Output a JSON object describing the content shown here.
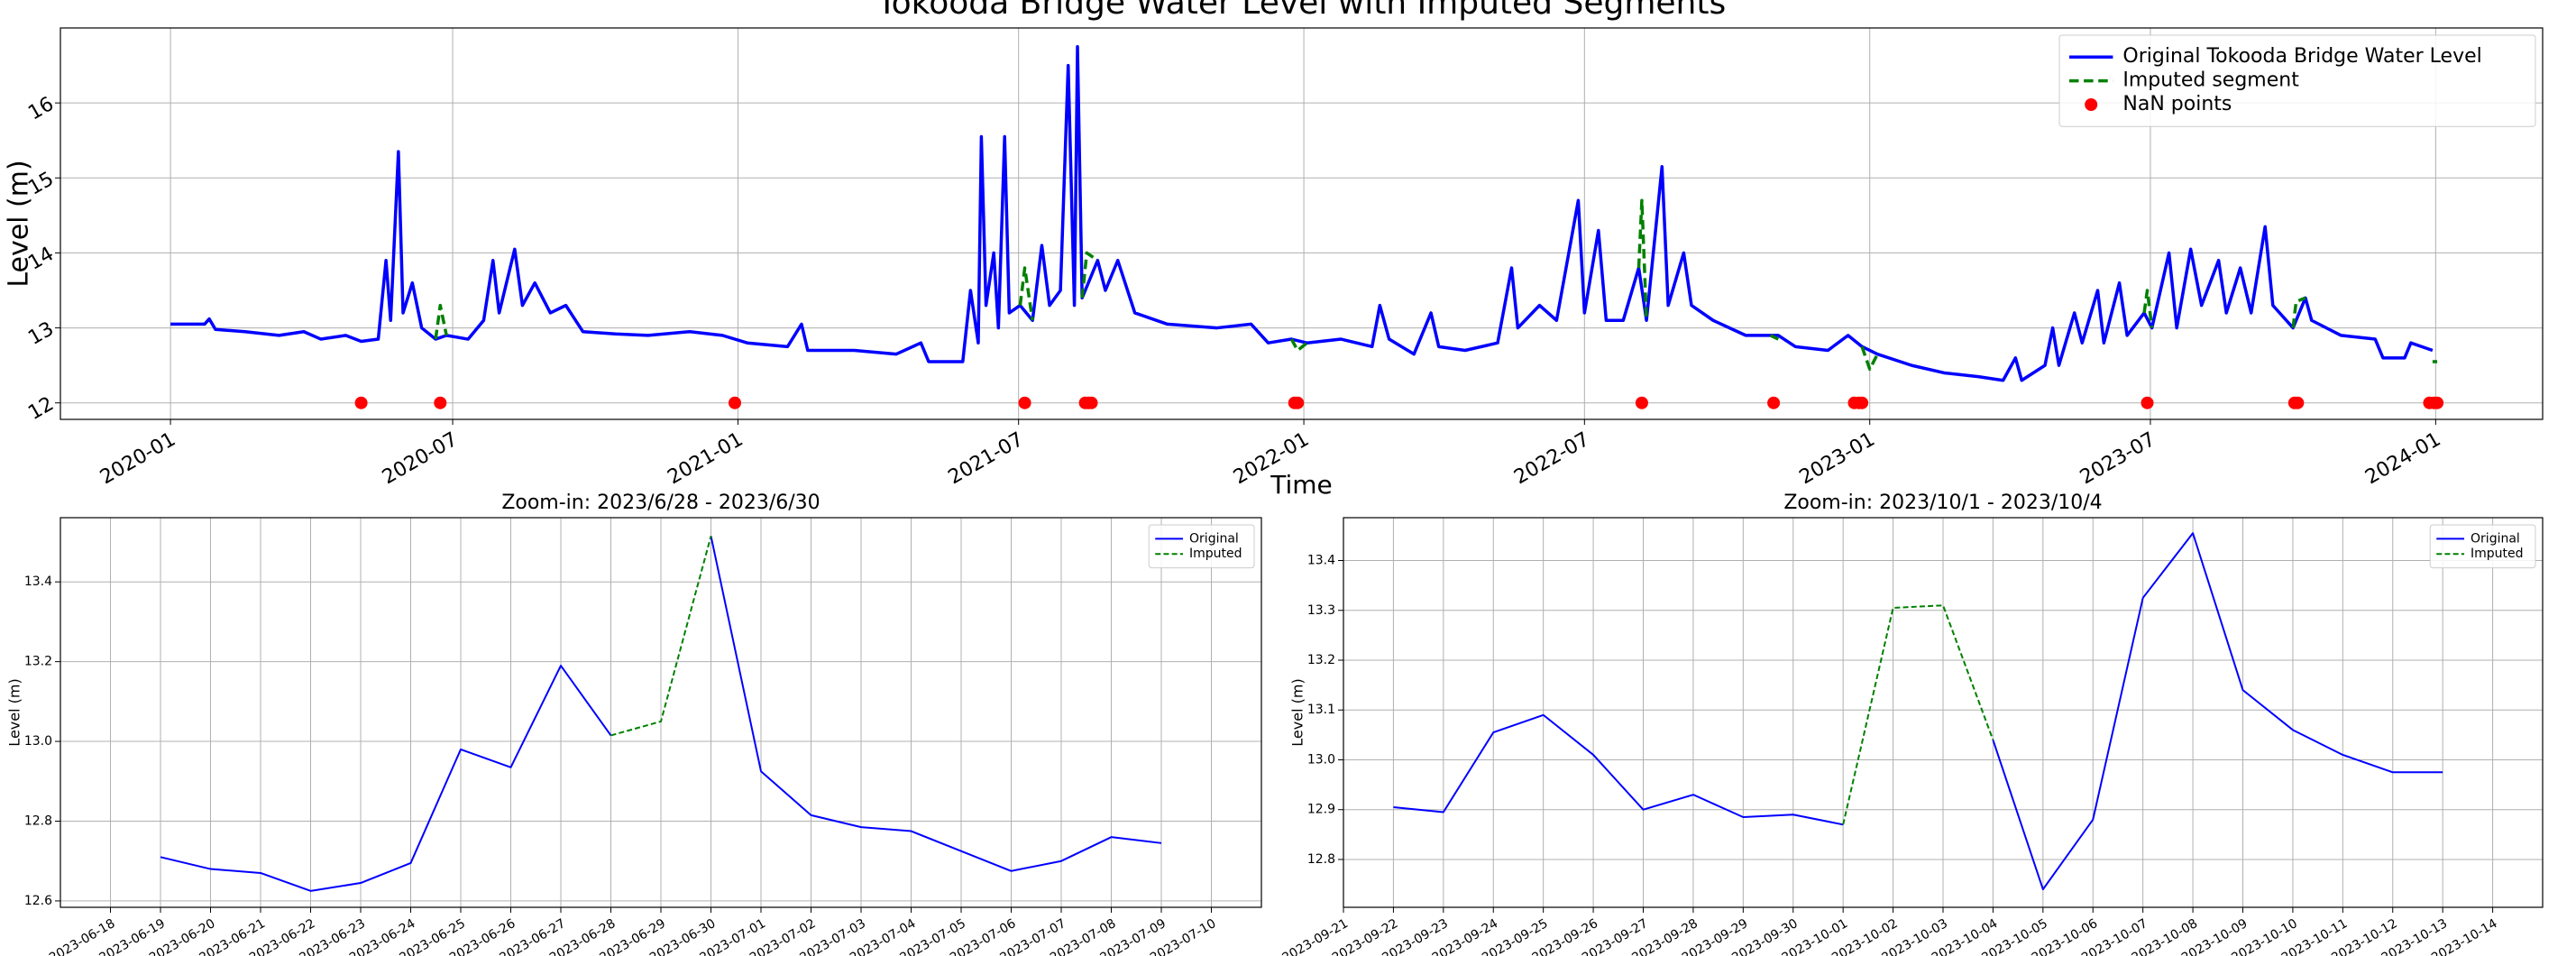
{
  "chart_data": [
    {
      "type": "line",
      "title": "Tokooda Bridge Water Level with Imputed Segments",
      "xlabel": "Time",
      "ylabel": "Level (m)",
      "xlim": [
        "2019-10-22",
        "2024-03-10"
      ],
      "ylim": [
        11.78,
        17.0
      ],
      "xticks": [
        {
          "value": "2020-01-01",
          "label": "2020-01"
        },
        {
          "value": "2020-07-01",
          "label": "2020-07"
        },
        {
          "value": "2021-01-01",
          "label": "2021-01"
        },
        {
          "value": "2021-07-01",
          "label": "2021-07"
        },
        {
          "value": "2022-01-01",
          "label": "2022-01"
        },
        {
          "value": "2022-07-01",
          "label": "2022-07"
        },
        {
          "value": "2023-01-01",
          "label": "2023-01"
        },
        {
          "value": "2023-07-01",
          "label": "2023-07"
        },
        {
          "value": "2024-01-01",
          "label": "2024-01"
        }
      ],
      "yticks": [
        12,
        13,
        14,
        15,
        16
      ],
      "grid": true,
      "legend": "upper right",
      "series": [
        {
          "name": "Original Tokooda Bridge Water Level",
          "color": "#0000ff",
          "style": "solid",
          "x": [
            "2020-01-01",
            "2020-01-23",
            "2020-01-26",
            "2020-01-30",
            "2020-02-18",
            "2020-03-11",
            "2020-03-27",
            "2020-04-07",
            "2020-04-23",
            "2020-05-03",
            "2020-05-14",
            "2020-05-19",
            "2020-05-22",
            "2020-05-27",
            "2020-05-30",
            "2020-06-05",
            "2020-06-11",
            "2020-06-20",
            "2020-06-27",
            "2020-07-11",
            "2020-07-21",
            "2020-07-27",
            "2020-07-31",
            "2020-08-10",
            "2020-08-15",
            "2020-08-23",
            "2020-09-02",
            "2020-09-12",
            "2020-09-23",
            "2020-10-14",
            "2020-11-04",
            "2020-12-01",
            "2020-12-22",
            "2021-01-07",
            "2021-02-02",
            "2021-02-11",
            "2021-02-15",
            "2021-03-17",
            "2021-04-13",
            "2021-04-29",
            "2021-05-04",
            "2021-05-26",
            "2021-05-31",
            "2021-06-05",
            "2021-06-07",
            "2021-06-10",
            "2021-06-15",
            "2021-06-18",
            "2021-06-22",
            "2021-06-25",
            "2021-07-02",
            "2021-07-10",
            "2021-07-16",
            "2021-07-21",
            "2021-07-28",
            "2021-08-02",
            "2021-08-06",
            "2021-08-08",
            "2021-08-11",
            "2021-08-21",
            "2021-08-26",
            "2021-09-03",
            "2021-09-14",
            "2021-10-05",
            "2021-11-06",
            "2021-11-28",
            "2021-12-09",
            "2021-12-24",
            "2022-01-03",
            "2022-01-25",
            "2022-02-14",
            "2022-02-19",
            "2022-02-25",
            "2022-03-13",
            "2022-03-24",
            "2022-03-29",
            "2022-04-15",
            "2022-05-06",
            "2022-05-15",
            "2022-05-19",
            "2022-06-02",
            "2022-06-13",
            "2022-06-27",
            "2022-07-01",
            "2022-07-10",
            "2022-07-15",
            "2022-07-26",
            "2022-08-05",
            "2022-08-10",
            "2022-08-20",
            "2022-08-24",
            "2022-09-03",
            "2022-09-08",
            "2022-09-22",
            "2022-10-13",
            "2022-11-03",
            "2022-11-14",
            "2022-12-05",
            "2022-12-18",
            "2022-12-27",
            "2023-01-06",
            "2023-01-28",
            "2023-02-18",
            "2023-03-12",
            "2023-03-28",
            "2023-04-05",
            "2023-04-09",
            "2023-04-24",
            "2023-04-29",
            "2023-05-03",
            "2023-05-13",
            "2023-05-18",
            "2023-05-28",
            "2023-06-01",
            "2023-06-11",
            "2023-06-16",
            "2023-06-27",
            "2023-07-02",
            "2023-07-13",
            "2023-07-18",
            "2023-07-27",
            "2023-08-03",
            "2023-08-14",
            "2023-08-19",
            "2023-08-28",
            "2023-09-04",
            "2023-09-13",
            "2023-09-18",
            "2023-10-01",
            "2023-10-09",
            "2023-10-13",
            "2023-11-01",
            "2023-11-23",
            "2023-11-28",
            "2023-12-12",
            "2023-12-16",
            "2023-12-30"
          ],
          "values": [
            13.05,
            13.05,
            13.12,
            12.98,
            12.95,
            12.9,
            12.95,
            12.85,
            12.9,
            12.82,
            12.85,
            13.9,
            13.1,
            15.35,
            13.2,
            13.6,
            13.0,
            12.85,
            12.9,
            12.85,
            13.1,
            13.9,
            13.2,
            14.05,
            13.3,
            13.6,
            13.2,
            13.3,
            12.95,
            12.92,
            12.9,
            12.95,
            12.9,
            12.8,
            12.75,
            13.05,
            12.7,
            12.7,
            12.65,
            12.8,
            12.55,
            12.55,
            13.5,
            12.8,
            15.55,
            13.3,
            14.0,
            13.0,
            15.55,
            13.2,
            13.3,
            13.1,
            14.1,
            13.3,
            13.5,
            16.5,
            13.3,
            16.75,
            13.4,
            13.9,
            13.5,
            13.9,
            13.2,
            13.05,
            13.0,
            13.05,
            12.8,
            12.85,
            12.8,
            12.85,
            12.75,
            13.3,
            12.85,
            12.65,
            13.2,
            12.75,
            12.7,
            12.8,
            13.8,
            13.0,
            13.3,
            13.1,
            14.7,
            13.2,
            14.3,
            13.1,
            13.1,
            13.8,
            13.1,
            15.15,
            13.3,
            14.0,
            13.3,
            13.1,
            12.9,
            12.9,
            12.75,
            12.7,
            12.9,
            12.75,
            12.65,
            12.5,
            12.4,
            12.35,
            12.3,
            12.6,
            12.3,
            12.5,
            13.0,
            12.5,
            13.2,
            12.8,
            13.5,
            12.8,
            13.6,
            12.9,
            13.2,
            13.0,
            14.0,
            13.0,
            14.05,
            13.3,
            13.9,
            13.2,
            13.8,
            13.2,
            14.35,
            13.3,
            13.0,
            13.4,
            13.1,
            12.9,
            12.85,
            12.6,
            12.6,
            12.8,
            12.7
          ]
        },
        {
          "name": "Imputed segment",
          "color": "#008000",
          "style": "dashed",
          "segments": [
            {
              "x": [
                "2020-06-20",
                "2020-06-23",
                "2020-06-27"
              ],
              "values": [
                12.85,
                13.3,
                12.9
              ]
            },
            {
              "x": [
                "2021-07-02",
                "2021-07-05",
                "2021-07-10"
              ],
              "values": [
                13.3,
                13.8,
                13.1
              ]
            },
            {
              "x": [
                "2021-08-11",
                "2021-08-14",
                "2021-08-21"
              ],
              "values": [
                13.4,
                14.0,
                13.9
              ]
            },
            {
              "x": [
                "2021-12-24",
                "2021-12-28",
                "2022-01-03"
              ],
              "values": [
                12.85,
                12.7,
                12.8
              ]
            },
            {
              "x": [
                "2022-08-05",
                "2022-08-07",
                "2022-08-10"
              ],
              "values": [
                13.8,
                14.7,
                13.1
              ]
            },
            {
              "x": [
                "2022-10-29",
                "2022-11-03"
              ],
              "values": [
                12.9,
                12.85
              ]
            },
            {
              "x": [
                "2022-12-27",
                "2023-01-01",
                "2023-01-06"
              ],
              "values": [
                12.75,
                12.45,
                12.65
              ]
            },
            {
              "x": [
                "2023-06-27",
                "2023-06-29",
                "2023-07-02"
              ],
              "values": [
                13.2,
                13.5,
                13.0
              ]
            },
            {
              "x": [
                "2023-10-01",
                "2023-10-03",
                "2023-10-09"
              ],
              "values": [
                13.0,
                13.35,
                13.4
              ]
            },
            {
              "x": [
                "2023-12-30",
                "2024-01-02"
              ],
              "values": [
                12.55,
                12.55
              ]
            }
          ]
        },
        {
          "name": "NaN points",
          "color": "#ff0000",
          "type": "scatter",
          "x": [
            "2020-05-03",
            "2020-06-23",
            "2020-12-30",
            "2021-07-05",
            "2021-08-13",
            "2021-08-15",
            "2021-08-17",
            "2021-12-26",
            "2021-12-28",
            "2022-08-07",
            "2022-10-31",
            "2022-12-22",
            "2022-12-25",
            "2022-12-27",
            "2023-06-29",
            "2023-10-02",
            "2023-10-04",
            "2023-12-28",
            "2023-12-31",
            "2024-01-02"
          ],
          "values": [
            12,
            12,
            12,
            12,
            12,
            12,
            12,
            12,
            12,
            12,
            12,
            12,
            12,
            12,
            12,
            12,
            12,
            12,
            12,
            12
          ]
        }
      ]
    },
    {
      "type": "line",
      "title": "Zoom-in: 2023/6/28 - 2023/6/30",
      "ylabel": "Level (m)",
      "xlim": [
        "2023-06-17",
        "2023-07-11"
      ],
      "ylim": [
        12.584,
        13.561
      ],
      "xticks": [
        "2023-06-18",
        "2023-06-19",
        "2023-06-20",
        "2023-06-21",
        "2023-06-22",
        "2023-06-23",
        "2023-06-24",
        "2023-06-25",
        "2023-06-26",
        "2023-06-27",
        "2023-06-28",
        "2023-06-29",
        "2023-06-30",
        "2023-07-01",
        "2023-07-02",
        "2023-07-03",
        "2023-07-04",
        "2023-07-05",
        "2023-07-06",
        "2023-07-07",
        "2023-07-08",
        "2023-07-09",
        "2023-07-10"
      ],
      "yticks": [
        12.6,
        12.8,
        {
          "value": 13,
          "label": "13.0"
        },
        13.2,
        13.4
      ],
      "grid": true,
      "legend": "upper right",
      "x": [
        "2023-06-19",
        "2023-06-20",
        "2023-06-21",
        "2023-06-22",
        "2023-06-23",
        "2023-06-24",
        "2023-06-25",
        "2023-06-26",
        "2023-06-27",
        "2023-06-28",
        "2023-06-29",
        "2023-06-30",
        "2023-07-01",
        "2023-07-02",
        "2023-07-03",
        "2023-07-04",
        "2023-07-05",
        "2023-07-06",
        "2023-07-07",
        "2023-07-08",
        "2023-07-09"
      ],
      "series": [
        {
          "name": "Original",
          "color": "#0000ff",
          "style": "solid",
          "values": [
            12.71,
            12.68,
            12.67,
            12.625,
            12.645,
            12.695,
            12.98,
            12.935,
            13.19,
            13.015,
            null,
            13.515,
            12.925,
            12.815,
            12.785,
            12.775,
            12.725,
            12.675,
            12.7,
            12.76,
            12.745
          ]
        },
        {
          "name": "Imputed",
          "color": "#008000",
          "style": "dashed",
          "values": [
            null,
            null,
            null,
            null,
            null,
            null,
            null,
            null,
            null,
            13.015,
            13.05,
            13.515,
            null,
            null,
            null,
            null,
            null,
            null,
            null,
            null,
            null
          ]
        }
      ]
    },
    {
      "type": "line",
      "title": "Zoom-in: 2023/10/1 - 2023/10/4",
      "ylabel": "Level (m)",
      "xlim": [
        "2023-09-21",
        "2023-10-15"
      ],
      "ylim": [
        12.704,
        13.486
      ],
      "xticks": [
        "2023-09-21",
        "2023-09-22",
        "2023-09-23",
        "2023-09-24",
        "2023-09-25",
        "2023-09-26",
        "2023-09-27",
        "2023-09-28",
        "2023-09-29",
        "2023-09-30",
        "2023-10-01",
        "2023-10-02",
        "2023-10-03",
        "2023-10-04",
        "2023-10-05",
        "2023-10-06",
        "2023-10-07",
        "2023-10-08",
        "2023-10-09",
        "2023-10-10",
        "2023-10-11",
        "2023-10-12",
        "2023-10-13",
        "2023-10-14"
      ],
      "yticks": [
        12.8,
        12.9,
        {
          "value": 13,
          "label": "13.0"
        },
        13.1,
        13.2,
        13.3,
        13.4
      ],
      "grid": true,
      "legend": "upper right",
      "x": [
        "2023-09-22",
        "2023-09-23",
        "2023-09-24",
        "2023-09-25",
        "2023-09-26",
        "2023-09-27",
        "2023-09-28",
        "2023-09-29",
        "2023-09-30",
        "2023-10-01",
        "2023-10-02",
        "2023-10-03",
        "2023-10-04",
        "2023-10-05",
        "2023-10-06",
        "2023-10-07",
        "2023-10-08",
        "2023-10-09",
        "2023-10-10",
        "2023-10-11",
        "2023-10-12",
        "2023-10-13"
      ],
      "series": [
        {
          "name": "Original",
          "color": "#0000ff",
          "style": "solid",
          "values": [
            12.905,
            12.895,
            13.055,
            13.09,
            13.01,
            12.9,
            12.93,
            12.885,
            12.89,
            12.87,
            null,
            null,
            13.04,
            12.74,
            12.88,
            13.325,
            13.455,
            13.14,
            13.06,
            13.01,
            12.975,
            12.975
          ]
        },
        {
          "name": "Imputed",
          "color": "#008000",
          "style": "dashed",
          "values": [
            null,
            null,
            null,
            null,
            null,
            null,
            null,
            null,
            null,
            12.87,
            13.305,
            13.31,
            13.04,
            null,
            null,
            null,
            null,
            null,
            null,
            null,
            null,
            null
          ]
        }
      ]
    }
  ]
}
